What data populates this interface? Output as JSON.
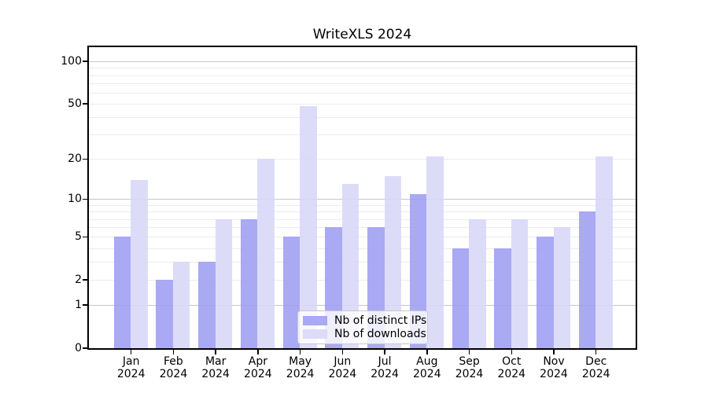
{
  "chart_data": {
    "type": "bar",
    "title": "WriteXLS 2024",
    "year_label": "2024",
    "month_labels": [
      "Jan",
      "Feb",
      "Mar",
      "Apr",
      "May",
      "Jun",
      "Jul",
      "Aug",
      "Sep",
      "Oct",
      "Nov",
      "Dec"
    ],
    "categories": [
      "Jan 2024",
      "Feb 2024",
      "Mar 2024",
      "Apr 2024",
      "May 2024",
      "Jun 2024",
      "Jul 2024",
      "Aug 2024",
      "Sep 2024",
      "Oct 2024",
      "Nov 2024",
      "Dec 2024"
    ],
    "series": [
      {
        "name": "Nb of distinct IPs",
        "color": "#9d9df2",
        "values": [
          5,
          2,
          3,
          7,
          5,
          6,
          6,
          11,
          4,
          4,
          5,
          8
        ]
      },
      {
        "name": "Nb of downloads",
        "color": "#d7d7f8",
        "values": [
          14,
          3,
          7,
          20,
          48,
          13,
          15,
          21,
          7,
          7,
          6,
          21
        ]
      }
    ],
    "yscale": "log1p",
    "ylim": [
      0,
      126
    ],
    "yticks": [
      0,
      1,
      2,
      5,
      10,
      20,
      50,
      100
    ],
    "grid": {
      "major": [
        1,
        10,
        100
      ],
      "minor": [
        2,
        3,
        4,
        5,
        6,
        7,
        8,
        9,
        20,
        30,
        40,
        50,
        60,
        70,
        80,
        90
      ],
      "major_color": "#c8c8c8",
      "minor_color": "#ececec"
    },
    "legend_position": "lower center",
    "axis_color": "#000000",
    "background_color": "#ffffff"
  }
}
